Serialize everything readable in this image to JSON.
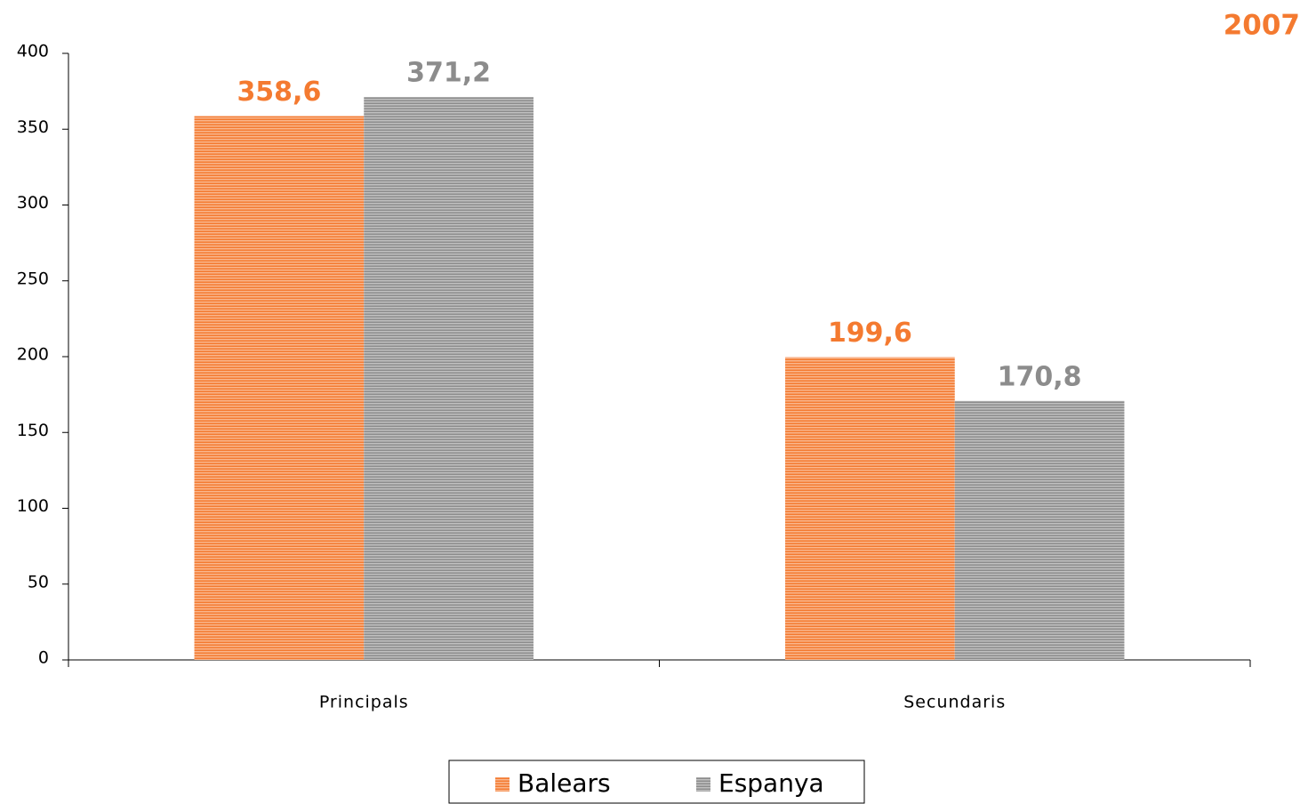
{
  "chart_data": {
    "type": "bar",
    "title": "2007",
    "categories": [
      "Principals",
      "Secundaris"
    ],
    "series": [
      {
        "name": "Balears",
        "color": "#f47a30",
        "values": [
          358.6,
          199.6
        ],
        "value_labels": [
          "358,6",
          "199,6"
        ]
      },
      {
        "name": "Espanya",
        "color": "#8c8c8c",
        "values": [
          371.2,
          170.8
        ],
        "value_labels": [
          "371,2",
          "170,8"
        ]
      }
    ],
    "ylim": [
      0,
      400
    ],
    "yticks": [
      0,
      50,
      100,
      150,
      200,
      250,
      300,
      350,
      400
    ],
    "grid": false,
    "legend": "bottom"
  }
}
